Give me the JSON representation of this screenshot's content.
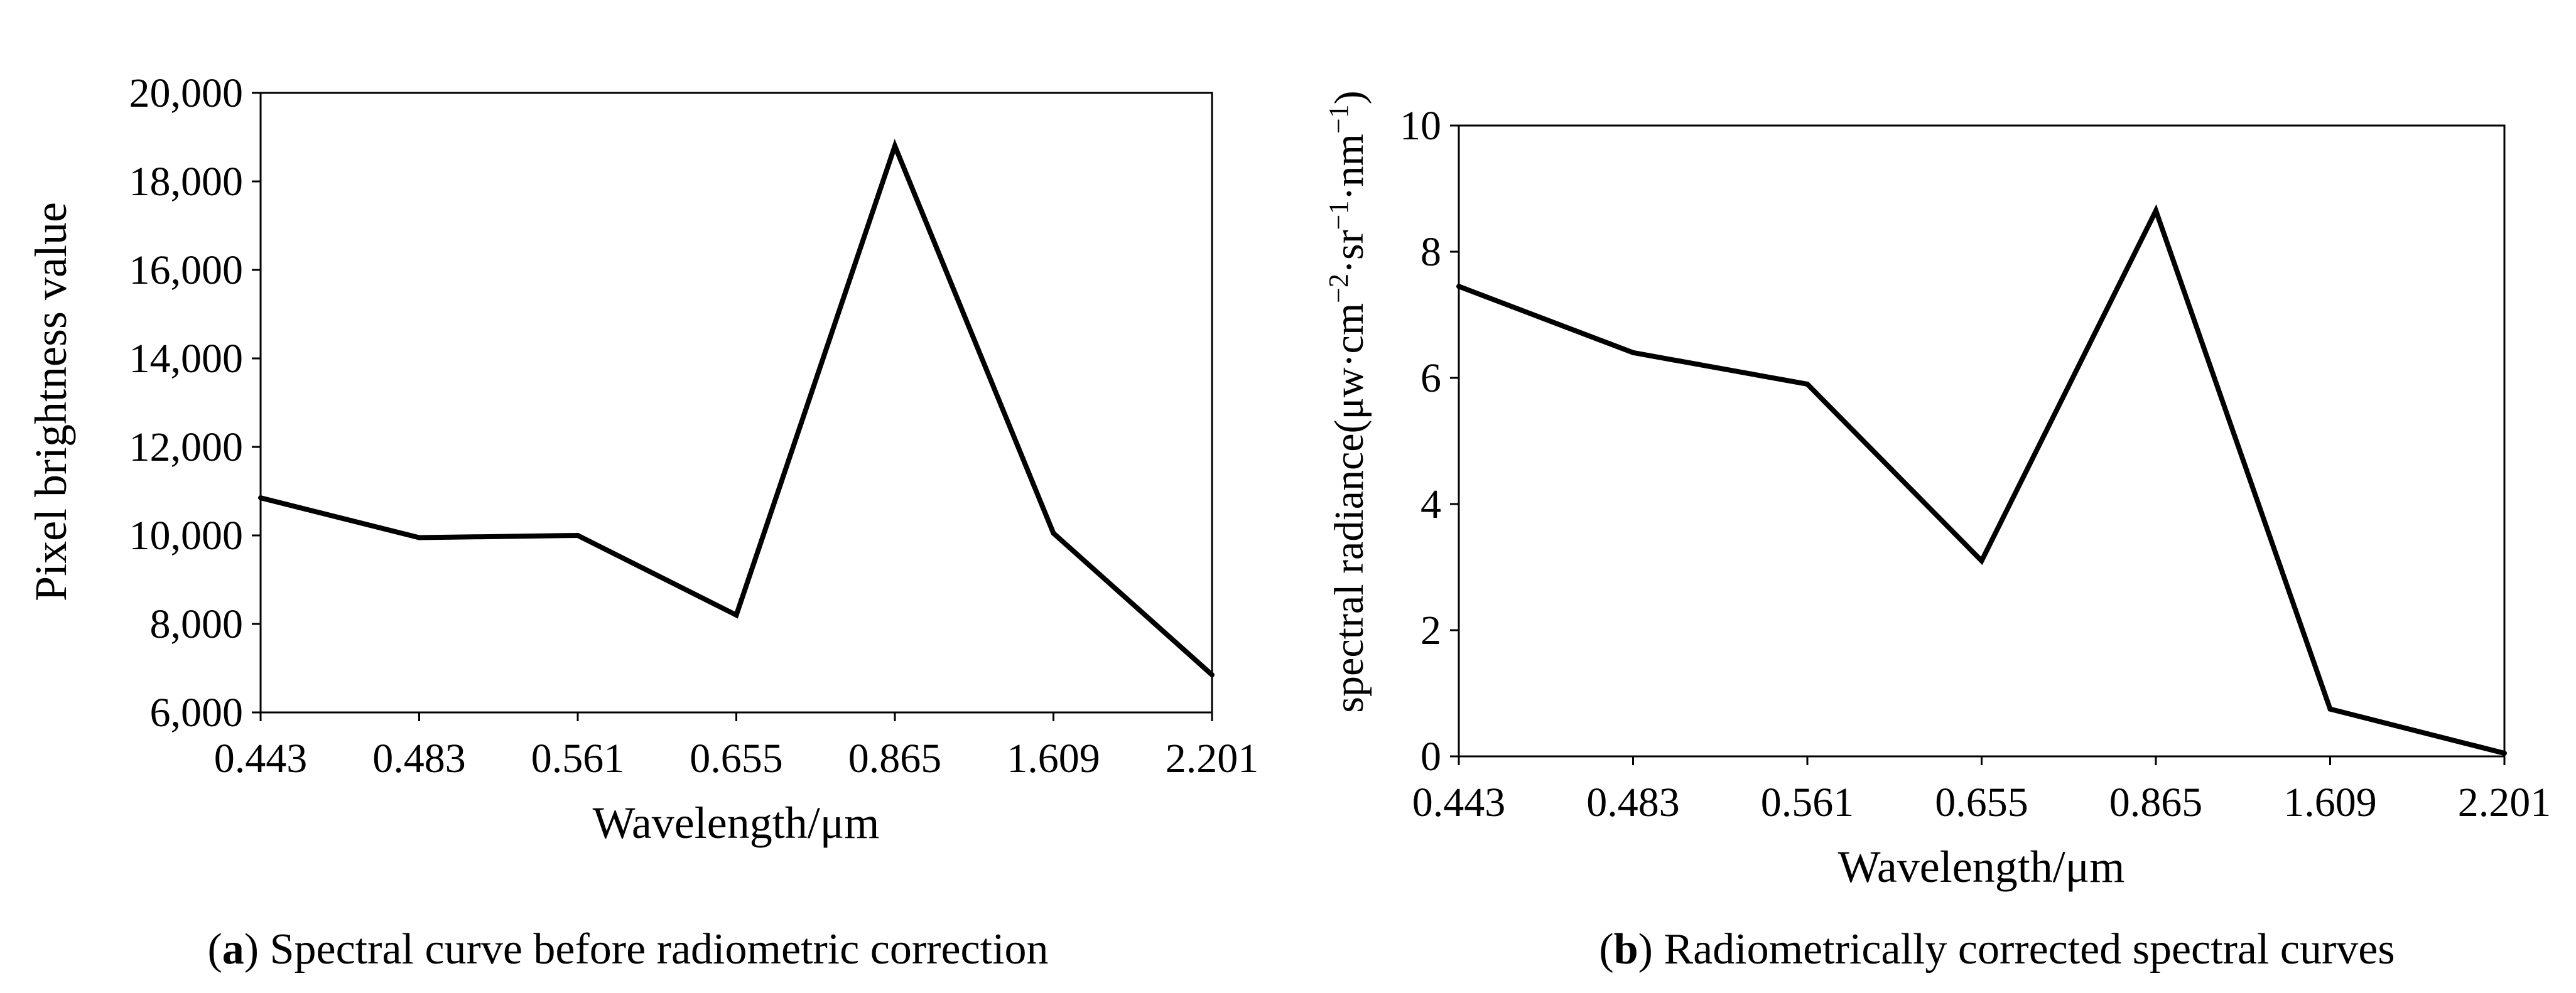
{
  "chart_data": [
    {
      "type": "line",
      "title": "",
      "xlabel": "Wavelength/μm",
      "ylabel": "Pixel brightness value",
      "categories": [
        "0.443",
        "0.483",
        "0.561",
        "0.655",
        "0.865",
        "1.609",
        "2.201"
      ],
      "values": [
        10850,
        9950,
        10000,
        8200,
        18800,
        10050,
        6850
      ],
      "yticks": [
        "6,000",
        "8,000",
        "10,000",
        "12,000",
        "14,000",
        "16,000",
        "18,000",
        "20,000"
      ],
      "ylim": [
        6000,
        20000
      ],
      "grid": false,
      "caption": {
        "label": "a",
        "text": " Spectral curve before radiometric correction"
      }
    },
    {
      "type": "line",
      "title": "",
      "xlabel": "Wavelength/μm",
      "ylabel": {
        "base": "spectral radiance(μw·cm",
        "exp1": "−2",
        "mid1": "·sr",
        "exp2": "−1",
        "mid2": "·nm",
        "exp3": "−1",
        "end": ")"
      },
      "categories": [
        "0.443",
        "0.483",
        "0.561",
        "0.655",
        "0.865",
        "1.609",
        "2.201"
      ],
      "values": [
        7.45,
        6.4,
        5.9,
        3.1,
        8.65,
        0.75,
        0.05
      ],
      "yticks": [
        "0",
        "2",
        "4",
        "6",
        "8",
        "10"
      ],
      "ylim": [
        0,
        10
      ],
      "grid": false,
      "caption": {
        "label": "b",
        "text": " Radiometrically corrected spectral curves"
      }
    }
  ]
}
